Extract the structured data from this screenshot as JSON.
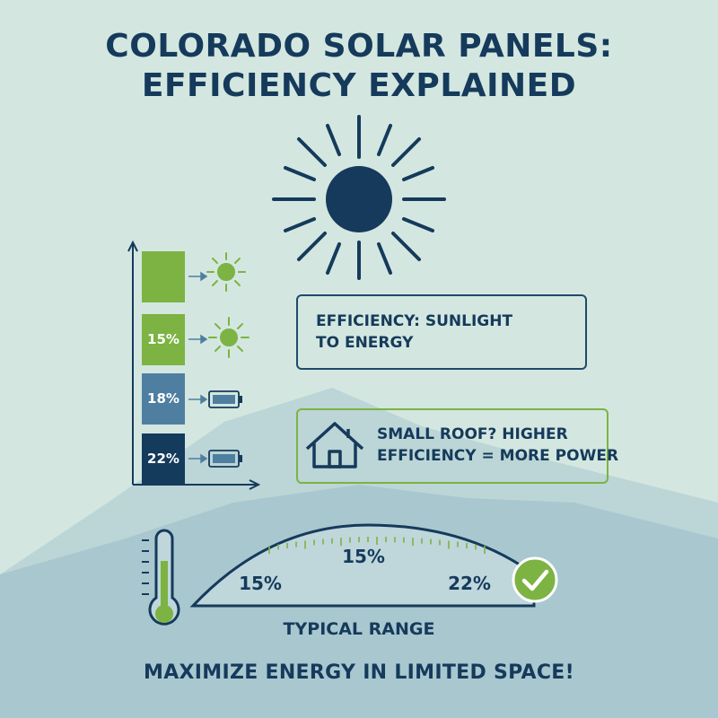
{
  "title": {
    "line1": "COLORADO SOLAR PANELS:",
    "line2": "EFFICIENCY EXPLAINED"
  },
  "bars": [
    {
      "label": "",
      "color": "#7cb342",
      "icon": "sun-icon"
    },
    {
      "label": "15%",
      "color": "#7cb342",
      "icon": "sun-icon"
    },
    {
      "label": "18%",
      "color": "#4f7fa0",
      "icon": "battery-icon"
    },
    {
      "label": "22%",
      "color": "#143a5c",
      "icon": "battery-icon"
    }
  ],
  "callouts": {
    "efficiency": {
      "line1": "EFFICIENCY: SUNLIGHT",
      "line2": "TO ENERGY"
    },
    "roof": {
      "line1": "SMALL ROOF? HIGHER",
      "line2": "EFFICIENCY = MORE POWER",
      "icon": "house-icon"
    }
  },
  "gauge": {
    "left_label": "15%",
    "top_label": "15%",
    "right_label": "22%",
    "range_label": "TYPICAL RANGE",
    "check_icon": "check-icon",
    "thermometer_icon": "thermometer-icon"
  },
  "footer": "MAXIMIZE ENERGY IN LIMITED SPACE!",
  "colors": {
    "background": "#d3e7e0",
    "navy": "#153a5b",
    "green": "#7cb342",
    "steel_blue": "#4f7fa0",
    "mountain": "#a9c7cf"
  }
}
